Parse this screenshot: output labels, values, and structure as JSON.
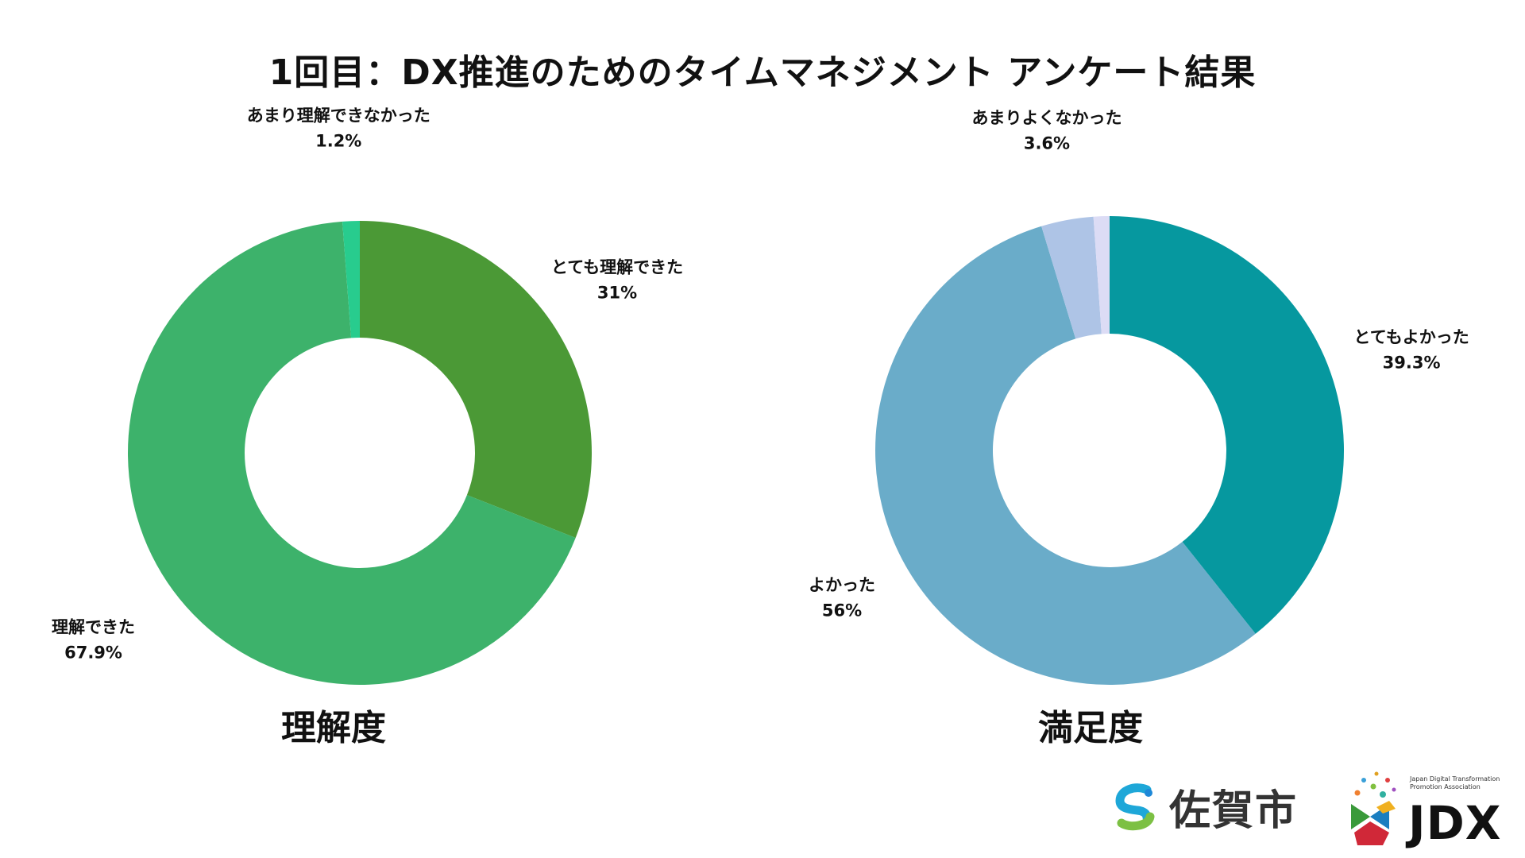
{
  "title": "1回目：DX推進のためのタイムマネジメント アンケート結果",
  "chart_data": [
    {
      "type": "pie",
      "caption": "理解度",
      "slices": [
        {
          "label": "とても理解できた",
          "pct_label": "31%",
          "value": 31.0,
          "color": "#4b9936"
        },
        {
          "label": "理解できた",
          "pct_label": "67.9%",
          "value": 67.9,
          "color": "#3db26b"
        },
        {
          "label": "あまり理解できなかった",
          "pct_label": "1.2%",
          "value": 1.2,
          "color": "#28cc8e"
        }
      ]
    },
    {
      "type": "pie",
      "caption": "満足度",
      "slices": [
        {
          "label": "とてもよかった",
          "pct_label": "39.3%",
          "value": 39.3,
          "color": "#06989f"
        },
        {
          "label": "よかった",
          "pct_label": "56%",
          "value": 56.0,
          "color": "#6aacc9"
        },
        {
          "label": "あまりよくなかった",
          "pct_label": "3.6%",
          "value": 3.6,
          "color": "#aec4e6"
        },
        {
          "label": "",
          "pct_label": "",
          "value": 1.1,
          "color": "#dcdcf5"
        }
      ]
    }
  ],
  "footer": {
    "saga_name": "佐賀市",
    "jdx_tagline": "Japan Digital Transformation Promotion Association",
    "jdx_name": "JDX"
  }
}
